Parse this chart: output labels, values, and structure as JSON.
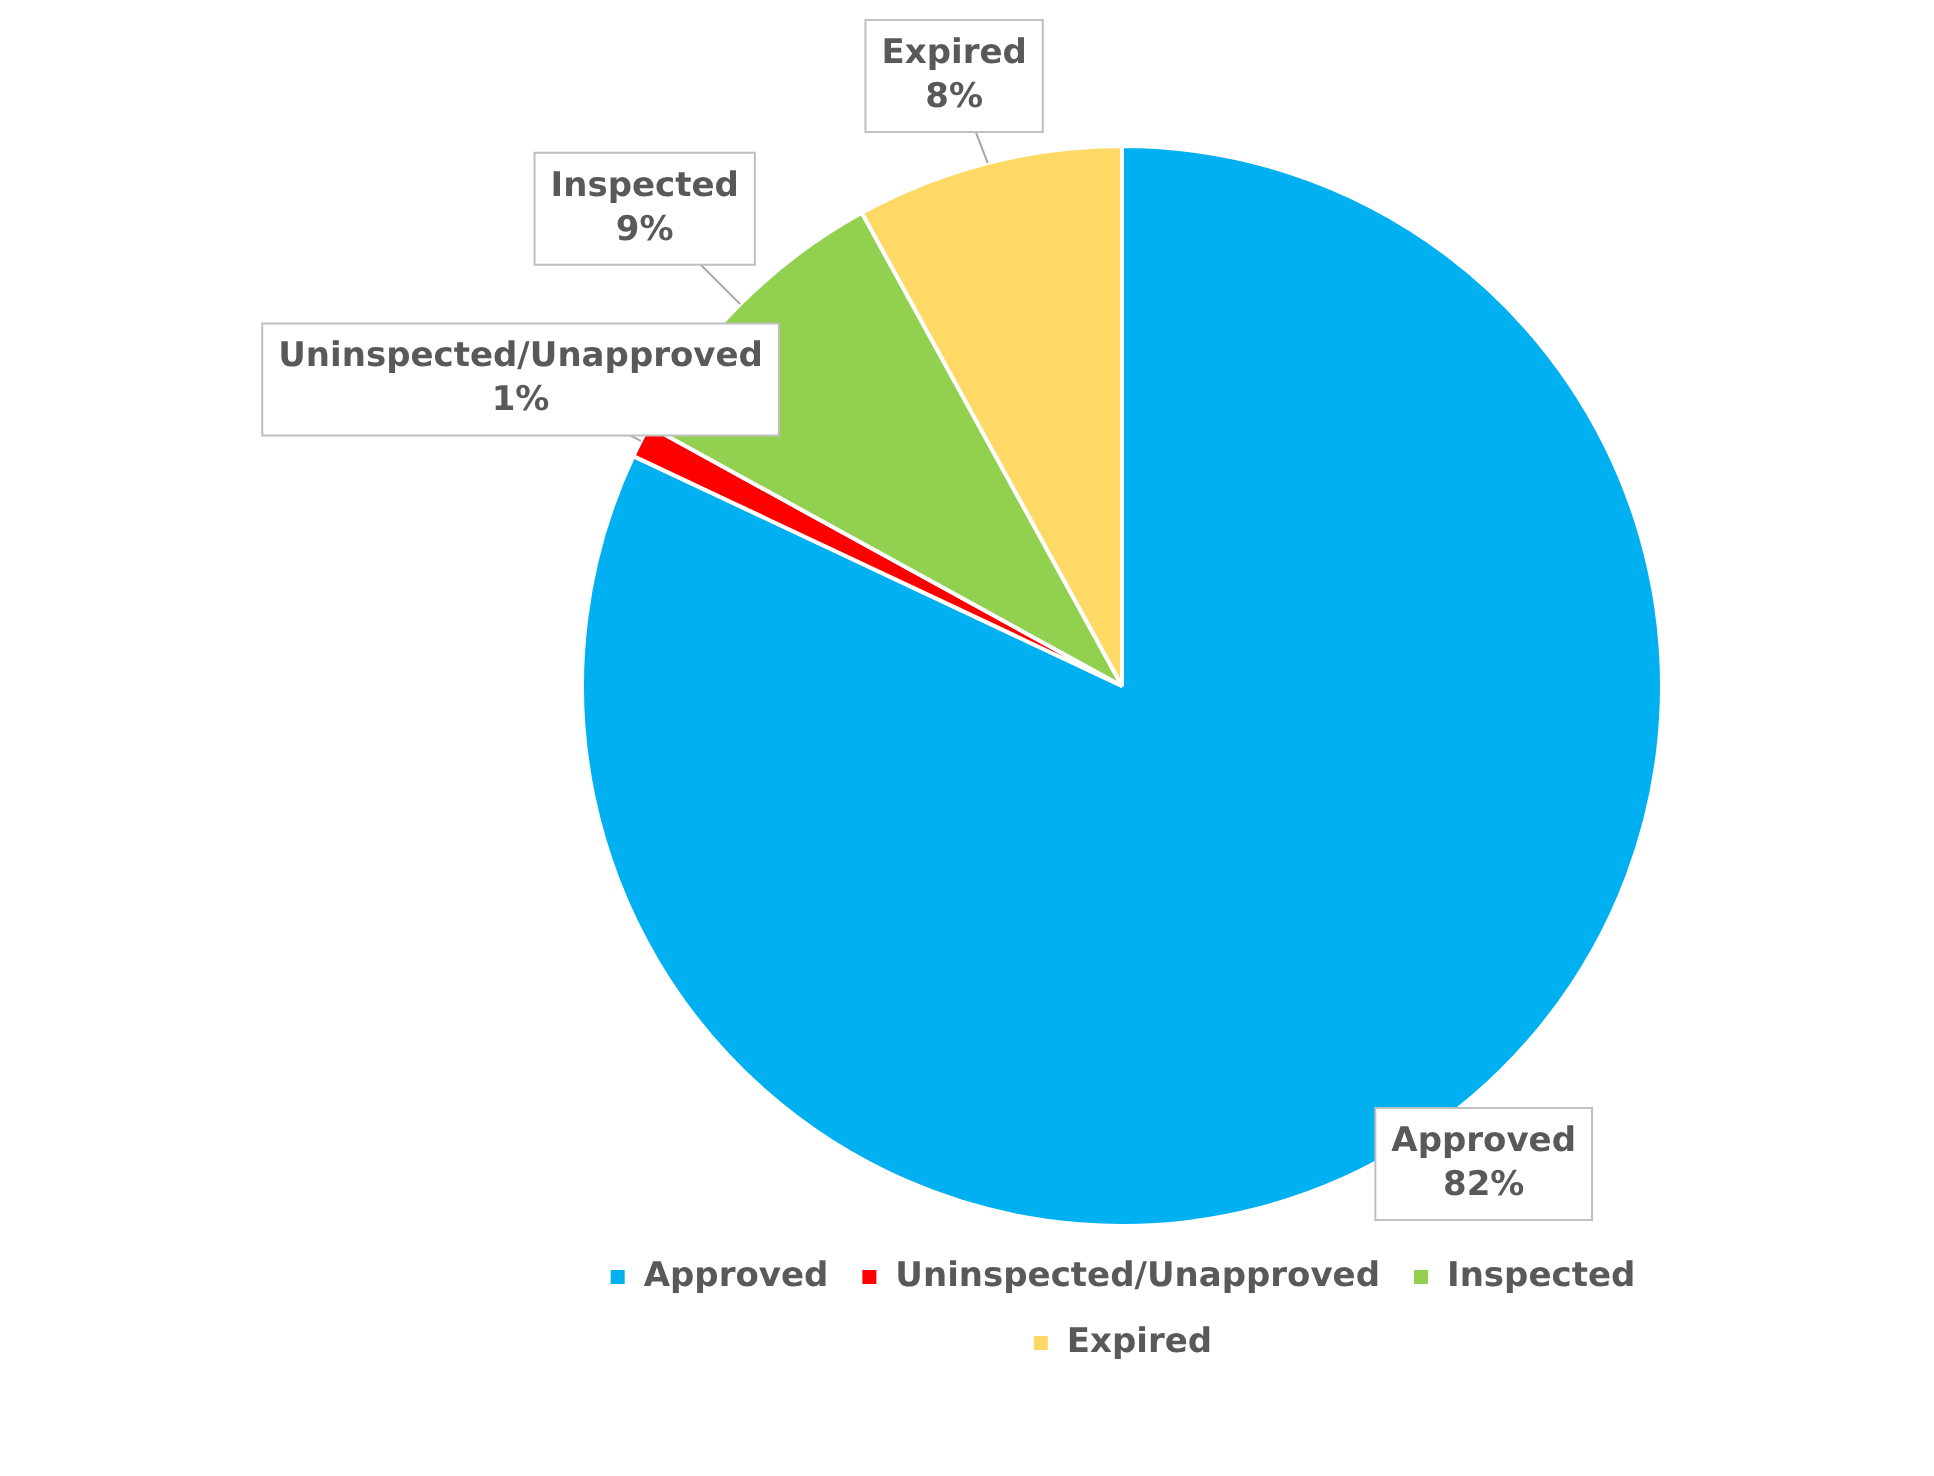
{
  "chart_data": {
    "type": "pie",
    "categories": [
      "Approved",
      "Uninspected/Unapproved",
      "Inspected",
      "Expired"
    ],
    "values": [
      82,
      1,
      9,
      8
    ],
    "value_labels": [
      "82%",
      "1%",
      "9%",
      "8%"
    ],
    "colors": [
      "#00b0f0",
      "#ff0000",
      "#92d050",
      "#ffd966"
    ],
    "legend": "bottom"
  }
}
